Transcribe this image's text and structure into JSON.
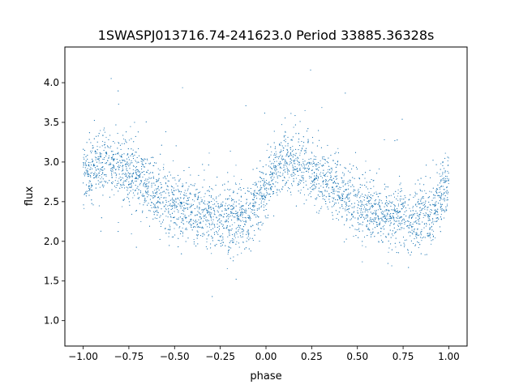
{
  "chart_data": {
    "type": "scatter",
    "title": "1SWASPJ013716.74-241623.0 Period 33885.36328s",
    "xlabel": "phase",
    "ylabel": "flux",
    "xlim": [
      -1.1,
      1.1
    ],
    "ylim": [
      0.68,
      4.45
    ],
    "xticks": [
      -1.0,
      -0.75,
      -0.5,
      -0.25,
      0.0,
      0.25,
      0.5,
      0.75,
      1.0
    ],
    "xtick_labels": [
      "−1.00",
      "−0.75",
      "−0.50",
      "−0.25",
      "0.00",
      "0.25",
      "0.50",
      "0.75",
      "1.00"
    ],
    "yticks": [
      1.0,
      1.5,
      2.0,
      2.5,
      3.0,
      3.5,
      4.0
    ],
    "ytick_labels": [
      "1.0",
      "1.5",
      "2.0",
      "2.5",
      "3.0",
      "3.5",
      "4.0"
    ],
    "grid": false,
    "legend": "none",
    "marker_color": "#1f77b4",
    "series": [
      {
        "points_note": "light curve folded over two cycles; representative trend samples",
        "x": [
          -1.0,
          -0.9,
          -0.8,
          -0.7,
          -0.6,
          -0.5,
          -0.4,
          -0.3,
          -0.2,
          -0.1,
          0.0,
          0.1,
          0.2,
          0.3,
          0.4,
          0.5,
          0.6,
          0.7,
          0.8,
          0.9,
          1.0
        ],
        "y": [
          2.85,
          2.98,
          2.97,
          2.82,
          2.62,
          2.46,
          2.37,
          2.32,
          2.28,
          2.3,
          2.7,
          3.0,
          2.97,
          2.8,
          2.62,
          2.46,
          2.37,
          2.32,
          2.28,
          2.3,
          2.75
        ],
        "scatter": 0.2
      }
    ]
  }
}
